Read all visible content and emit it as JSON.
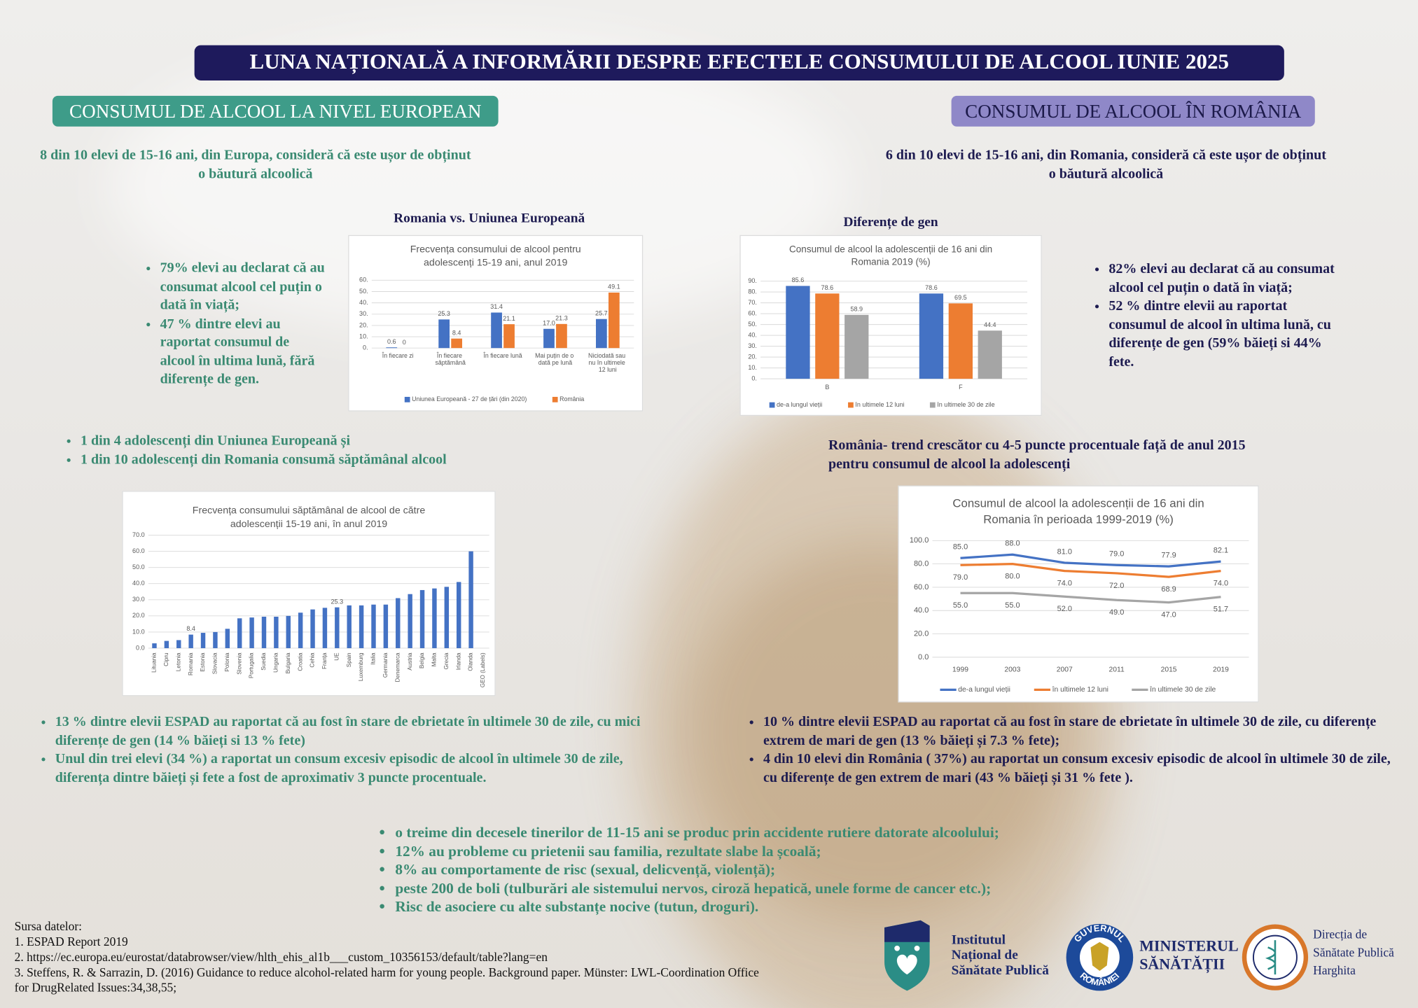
{
  "header": {
    "title": "LUNA NAȚIONALĂ A INFORMĂRII DESPRE EFECTELE CONSUMULUI DE ALCOOL IUNIE 2025"
  },
  "left": {
    "heading": "CONSUMUL DE ALCOOL LA NIVEL EUROPEAN",
    "intro": [
      "8  din 10 elevi de 15-16 ani, din Europa, consideră că este ușor de obținut",
      "o băutură alcoolică"
    ],
    "chart_caption": "Romania vs. Uniunea Europeană",
    "bullets_1": [
      "79%  elevi au declarat că au consumat alcool cel puțin o dată în viață;",
      "47 % dintre elevi au raportat consumul de alcool în ultima lună, fără diferențe de gen."
    ],
    "bullets_2": [
      "1 din 4 adolescenți din Uniunea Europeană și",
      "1 din 10 adolescenți din Romania consumă săptămânal alcool"
    ],
    "bullets_3": [
      "13 % dintre elevii ESPAD au raportat că au fost în stare de ebrietate în ultimele 30 de zile, cu mici diferențe de gen  (14 % băieți si 13 % fete)",
      "Unul din trei elevi (34 %) a raportat un consum excesiv episodic de alcool în ultimele 30 de zile, diferența dintre băieți și fete a fost de aproximativ 3 puncte procentuale."
    ]
  },
  "right": {
    "heading": "CONSUMUL DE ALCOOL ÎN ROMÂNIA",
    "intro": [
      "6 din 10 elevi de 15-16 ani, din Romania, consideră că este ușor de obținut",
      "o băutură alcoolică"
    ],
    "chart_caption": "Diferențe de gen",
    "bullets_1": [
      "82% elevi au declarat că au consumat alcool cel puțin o dată în viață;",
      "52 % dintre elevii au raportat consumul de alcool în ultima lună, cu diferențe de gen (59% băieți si 44% fete."
    ],
    "trend": [
      "România- trend crescător cu 4-5 puncte procentuale față de anul 2015",
      "pentru consumul de alcool la adolescenți"
    ],
    "bullets_2": [
      "10 % dintre elevii ESPAD au raportat că au fost în stare de ebrietate în ultimele 30 de zile, cu diferențe extrem de mari de gen (13 % băieți și 7.3 % fete);",
      "4 din 10 elevi din România ( 37%)  au raportat un consum excesiv episodic de alcool în ultimele 30 de zile, cu diferențe de gen  extrem de mari (43 %  băieți și  31 % fete )."
    ]
  },
  "bottom": {
    "bullets": [
      "o treime din decesele tinerilor de 11-15 ani se produc prin accidente rutiere datorate alcoolului;",
      "12% au probleme cu prietenii sau familia, rezultate slabe la școală;",
      "8% au comportamente de risc (sexual, delicvență, violență);",
      "peste 200 de boli (tulburări ale sistemului nervos, ciroză hepatică, unele forme de cancer etc.);",
      "Risc de asociere cu alte substanțe nocive (tutun, droguri)."
    ]
  },
  "sources": {
    "title": "Sursa datelor:",
    "items": [
      "1. ESPAD Report 2019",
      "2. https://ec.europa.eu/eurostat/databrowser/view/hlth_ehis_al1b___custom_10356153/default/table?lang=en",
      "3. Steffens, R. & Sarrazin, D. (2016) Guidance to reduce alcohol-related harm for young people. Background paper. Münster: LWL-Coordination Office for DrugRelated Issues:34,38,55;"
    ]
  },
  "logos": {
    "insp": [
      "Institutul",
      "Național de",
      "Sănătate Publică"
    ],
    "ministry_seal": [
      "GUVERNUL",
      "ROMÂNIEI"
    ],
    "ministry": [
      "MINISTERUL",
      "SĂNĂTĂȚII"
    ],
    "dsp": [
      "Direcția de",
      "Sănătate Publică",
      "Harghita"
    ]
  },
  "chart_data": [
    {
      "type": "bar",
      "title": "Frecvența consumului de alcool pentru adolescenți 15-19 ani, anul 2019",
      "categories": [
        "În fiecare zi",
        "În fiecare săptămână",
        "În fiecare lună",
        "Mai puțin de o dată pe lună",
        "Niciodată sau nu în ultimele 12 luni"
      ],
      "series": [
        {
          "name": "Uniunea Europeană - 27 de țări (din 2020)",
          "color": "#4472c4",
          "values": [
            0.6,
            25.3,
            31.4,
            17.0,
            25.7
          ],
          "value_labels": [
            "0.6",
            "25.3",
            "31.4",
            "17.0",
            "25.7"
          ]
        },
        {
          "name": "România",
          "color": "#ed7d31",
          "values": [
            0,
            8.4,
            21.1,
            21.3,
            49.1
          ],
          "value_labels": [
            "0",
            "8.4",
            "21.1",
            "21.3",
            "49.1"
          ]
        }
      ],
      "ylim": [
        0,
        60
      ],
      "yticks": [
        {
          "value": 0,
          "label": "0."
        },
        {
          "value": 10,
          "label": "10."
        },
        {
          "value": 20,
          "label": "20."
        },
        {
          "value": 30,
          "label": "30."
        },
        {
          "value": 40,
          "label": "40."
        },
        {
          "value": 50,
          "label": "50."
        },
        {
          "value": 60,
          "label": "60."
        }
      ],
      "grid": true,
      "legend": "bottom"
    },
    {
      "type": "bar",
      "title": "Consumul de alcool la adolescenții de 16 ani din Romania 2019 (%)",
      "categories": [
        "B",
        "F"
      ],
      "series": [
        {
          "name": "de-a lungul vieții",
          "color": "#4472c4",
          "values": [
            85.6,
            78.6
          ]
        },
        {
          "name": "în ultimele 12 luni",
          "color": "#ed7d31",
          "values": [
            78.6,
            69.5
          ]
        },
        {
          "name": "în ultimele 30 de zile",
          "color": "#a5a5a5",
          "values": [
            58.9,
            44.4
          ]
        }
      ],
      "ylim": [
        0,
        90
      ],
      "yticks": [
        {
          "value": 0,
          "label": "0."
        },
        {
          "value": 10,
          "label": "10."
        },
        {
          "value": 20,
          "label": "20."
        },
        {
          "value": 30,
          "label": "30."
        },
        {
          "value": 40,
          "label": "40."
        },
        {
          "value": 50,
          "label": "50."
        },
        {
          "value": 60,
          "label": "60."
        },
        {
          "value": 70,
          "label": "70."
        },
        {
          "value": 80,
          "label": "80."
        },
        {
          "value": 90,
          "label": "90."
        }
      ],
      "grid": true,
      "legend": "bottom"
    },
    {
      "type": "bar",
      "title": "Frecvența consumului săptămânal de alcool de către adolescenții 15-19 ani, în anul 2019",
      "categories": [
        "Lituania",
        "Cipru",
        "Letonia",
        "Romania",
        "Estonia",
        "Slovacia",
        "Polonia",
        "Slovenia",
        "Portugalia",
        "Suedia",
        "Ungaria",
        "Bulgaria",
        "Croatia",
        "Cehia",
        "Franța",
        "UE",
        "Spain",
        "Luxemburg",
        "Italia",
        "Germania",
        "Denemarca",
        "Austria",
        "Belgia",
        "Malta",
        "Grecia",
        "Irlanda",
        "Olanda",
        "GEO (Labels)"
      ],
      "values": [
        3,
        4.5,
        5,
        8.4,
        9.5,
        10,
        12,
        18.5,
        19,
        19.5,
        19.5,
        20,
        22,
        24,
        25,
        25.3,
        26.5,
        26.5,
        27,
        27,
        31,
        33.5,
        36,
        37,
        38,
        41,
        60,
        null
      ],
      "value_labels": [
        null,
        null,
        null,
        "8.4",
        null,
        null,
        null,
        null,
        null,
        null,
        null,
        null,
        null,
        null,
        null,
        "25.3",
        null,
        null,
        null,
        null,
        null,
        null,
        null,
        null,
        null,
        null,
        null,
        null
      ],
      "color": "#4472c4",
      "highlight_colors": {
        "Romania": "#70ad47",
        "UE": "#e81c1c"
      },
      "ylim": [
        0,
        70
      ],
      "yticks": [
        {
          "value": 0,
          "label": "0.0"
        },
        {
          "value": 10,
          "label": "10.0"
        },
        {
          "value": 20,
          "label": "20.0"
        },
        {
          "value": 30,
          "label": "30.0"
        },
        {
          "value": 40,
          "label": "40.0"
        },
        {
          "value": 50,
          "label": "50.0"
        },
        {
          "value": 60,
          "label": "60.0"
        },
        {
          "value": 70,
          "label": "70.0"
        }
      ],
      "grid": true,
      "x_label_rotation": -90
    },
    {
      "type": "line",
      "title": "Consumul de alcool la adolescenții de 16 ani din Romania în perioada 1999-2019 (%)",
      "x": [
        1999,
        2003,
        2007,
        2011,
        2015,
        2019
      ],
      "series": [
        {
          "name": "de-a lungul vieții",
          "color": "#4472c4",
          "values": [
            85.0,
            88.0,
            81.0,
            79.0,
            77.9,
            82.1
          ],
          "value_labels": [
            "85.0",
            "88.0",
            "81.0",
            "79.0",
            "77.9",
            "82.1"
          ]
        },
        {
          "name": "în ultimele 12 luni",
          "color": "#ed7d31",
          "values": [
            79.0,
            80.0,
            74.0,
            72.0,
            68.9,
            74.0
          ],
          "value_labels": [
            "79.0",
            "80.0",
            "74.0",
            "72.0",
            "68.9",
            "74.0"
          ]
        },
        {
          "name": "în ultimele 30 de zile",
          "color": "#a5a5a5",
          "values": [
            55.0,
            55.0,
            52.0,
            49.0,
            47.0,
            51.7
          ],
          "value_labels": [
            "55.0",
            "55.0",
            "52.0",
            "49.0",
            "47.0",
            "51.7"
          ]
        }
      ],
      "ylim": [
        0,
        100
      ],
      "yticks": [
        {
          "value": 0,
          "label": "0.0"
        },
        {
          "value": 20,
          "label": "20.0"
        },
        {
          "value": 40,
          "label": "40.0"
        },
        {
          "value": 60,
          "label": "60.0"
        },
        {
          "value": 80,
          "label": "80.0"
        },
        {
          "value": 100,
          "label": "100.0"
        }
      ],
      "grid": true,
      "legend": "bottom"
    }
  ]
}
